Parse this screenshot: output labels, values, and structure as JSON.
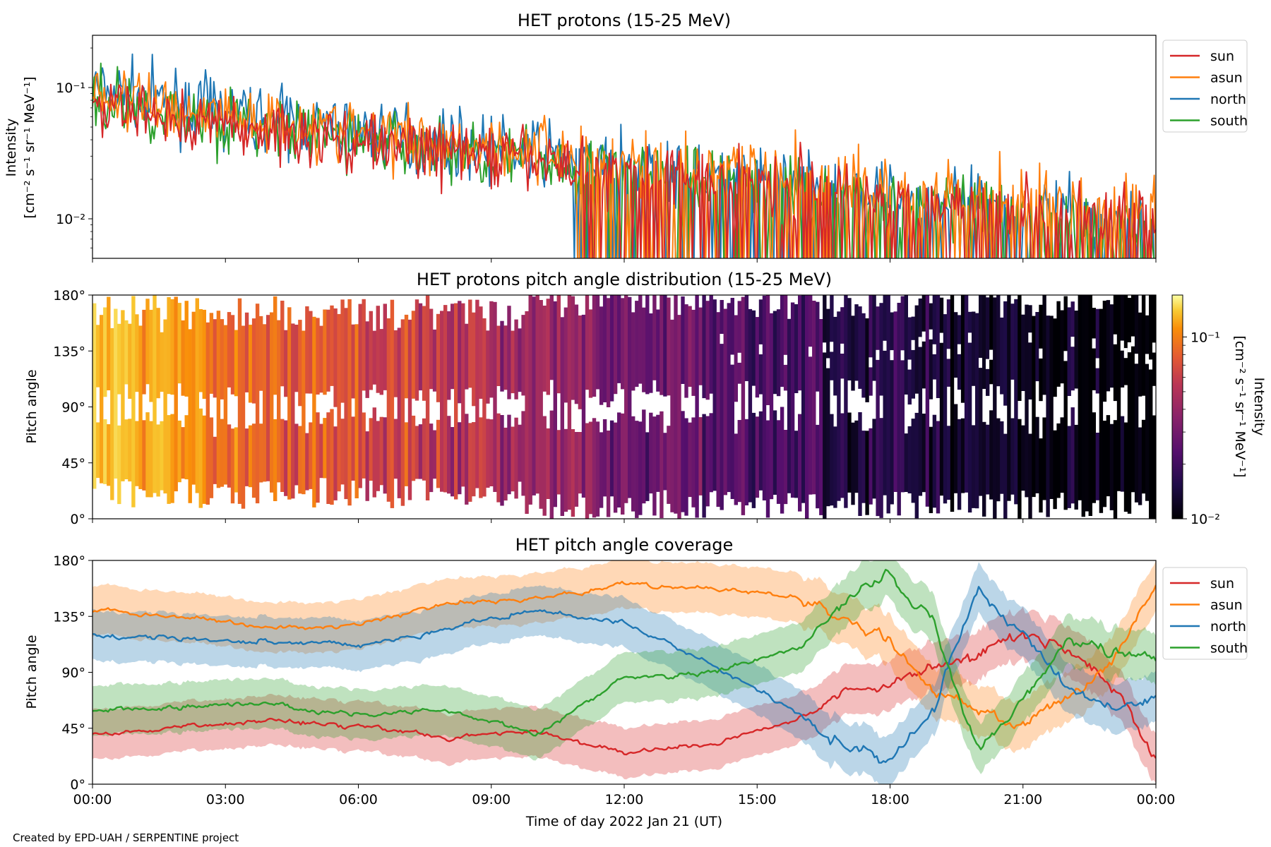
{
  "chart_data": [
    {
      "type": "line",
      "title": "HET protons (15-25 MeV)",
      "ylabel": "Intensity",
      "ylabel_units": "[cm⁻² s⁻¹ sr⁻¹ MeV⁻¹]",
      "yscale": "log",
      "ylim": [
        0.005,
        0.25
      ],
      "yticks": [
        "10⁻¹",
        "10⁻²"
      ],
      "ytick_values": [
        0.1,
        0.01
      ],
      "xlim": [
        "2022-01-21 00:00",
        "2022-01-22 00:00"
      ],
      "legend_placement": "outside-right-top",
      "series": [
        {
          "name": "sun",
          "color": "#d62728",
          "trend_start": 0.075,
          "trend_end": 0.01
        },
        {
          "name": "asun",
          "color": "#ff7f0e",
          "trend_start": 0.09,
          "trend_end": 0.012
        },
        {
          "name": "north",
          "color": "#1f77b4",
          "trend_start": 0.1,
          "trend_end": 0.01
        },
        {
          "name": "south",
          "color": "#2ca02c",
          "trend_start": 0.085,
          "trend_end": 0.009
        }
      ]
    },
    {
      "type": "heatmap",
      "title": "HET protons pitch angle distribution (15-25 MeV)",
      "ylabel": "Pitch angle",
      "ylim": [
        0,
        180
      ],
      "yticks": [
        "180°",
        "135°",
        "90°",
        "45°",
        "0°"
      ],
      "ytick_values": [
        180,
        135,
        90,
        45,
        0
      ],
      "xlim": [
        "2022-01-21 00:00",
        "2022-01-22 00:00"
      ],
      "colormap": "inferno",
      "colorbar_label": "Intensity",
      "colorbar_units": "[cm⁻² s⁻¹ sr⁻¹ MeV⁻¹]",
      "colorbar_scale": "log",
      "colorbar_range": [
        0.01,
        0.17
      ],
      "colorbar_ticks": [
        "10⁻¹",
        "10⁻²"
      ],
      "colorbar_tick_values": [
        0.1,
        0.01
      ]
    },
    {
      "type": "line",
      "title": "HET pitch angle coverage",
      "ylabel": "Pitch angle",
      "xlabel": "Time of day 2022 Jan 21 (UT)",
      "ylim": [
        0,
        180
      ],
      "yticks": [
        "180°",
        "135°",
        "90°",
        "45°",
        "0°"
      ],
      "ytick_values": [
        180,
        135,
        90,
        45,
        0
      ],
      "xlim": [
        "2022-01-21 00:00",
        "2022-01-22 00:00"
      ],
      "xticks": [
        "00:00",
        "03:00",
        "06:00",
        "09:00",
        "12:00",
        "15:00",
        "18:00",
        "21:00",
        "00:00"
      ],
      "xtick_hours": [
        0,
        3,
        6,
        9,
        12,
        15,
        18,
        21,
        24
      ],
      "legend_placement": "outside-right-top",
      "series": [
        {
          "name": "sun",
          "color": "#d62728",
          "hours": [
            0,
            2,
            4,
            6,
            8,
            10,
            12,
            14,
            16,
            17,
            18,
            19,
            20,
            21,
            22,
            23,
            24
          ],
          "values": [
            40,
            45,
            52,
            48,
            38,
            42,
            25,
            32,
            55,
            75,
            82,
            95,
            105,
            120,
            110,
            80,
            20
          ]
        },
        {
          "name": "asun",
          "color": "#ff7f0e",
          "hours": [
            0,
            2,
            4,
            6,
            8,
            10,
            12,
            14,
            16,
            17,
            18,
            19,
            20,
            21,
            22,
            23,
            24
          ],
          "values": [
            140,
            135,
            125,
            128,
            145,
            150,
            160,
            158,
            150,
            130,
            115,
            75,
            60,
            45,
            70,
            100,
            160
          ]
        },
        {
          "name": "north",
          "color": "#1f77b4",
          "hours": [
            0,
            2,
            4,
            6,
            8,
            10,
            12,
            14,
            16,
            17,
            18,
            19,
            20,
            21,
            22,
            23,
            24
          ],
          "values": [
            120,
            118,
            115,
            112,
            125,
            140,
            130,
            95,
            55,
            30,
            20,
            60,
            160,
            120,
            80,
            60,
            70
          ]
        },
        {
          "name": "south",
          "color": "#2ca02c",
          "hours": [
            0,
            2,
            4,
            6,
            8,
            10,
            12,
            14,
            16,
            17,
            18,
            19,
            20,
            21,
            22,
            23,
            24
          ],
          "values": [
            60,
            62,
            65,
            55,
            60,
            40,
            85,
            90,
            110,
            145,
            170,
            130,
            25,
            70,
            115,
            110,
            100
          ]
        }
      ]
    }
  ],
  "footer": {
    "credit": "Created by EPD-UAH / SERPENTINE project"
  }
}
